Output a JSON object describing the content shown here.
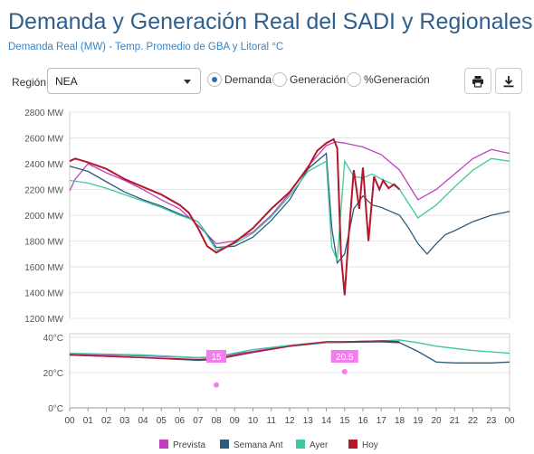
{
  "header": {
    "title": "Demanda y Generación Real del SADI y Regionales",
    "subtitle": "Demanda Real (MW) - Temp. Promedio de GBA y Litoral °C"
  },
  "controls": {
    "region_label": "Región",
    "region_value": "NEA",
    "radios": [
      {
        "label": "Demanda",
        "selected": true
      },
      {
        "label": "Generación",
        "selected": false
      },
      {
        "label": "%Generación",
        "selected": false
      }
    ],
    "print_icon": "printer-icon",
    "download_icon": "download-icon"
  },
  "colors": {
    "prevista": "#c13fbf",
    "semana_ant": "#2e5b7a",
    "ayer": "#3ec7a0",
    "hoy": "#b3182c",
    "marker": "#f37dec"
  },
  "chart_data": [
    {
      "type": "line",
      "title": "Demanda (MW)",
      "y_unit": "MW",
      "ylim": [
        1200,
        2800
      ],
      "y_ticks": [
        "1200 MW",
        "1400 MW",
        "1600 MW",
        "1800 MW",
        "2000 MW",
        "2200 MW",
        "2400 MW",
        "2600 MW",
        "2800 MW"
      ],
      "x_ticks": [
        "00",
        "01",
        "02",
        "03",
        "04",
        "05",
        "06",
        "07",
        "08",
        "09",
        "10",
        "11",
        "12",
        "13",
        "14",
        "15",
        "16",
        "17",
        "18",
        "19",
        "20",
        "21",
        "22",
        "23",
        "00"
      ],
      "x_unit": "hour",
      "xlim": [
        0,
        24
      ],
      "series": [
        {
          "name": "Prevista",
          "x": [
            0,
            0.3,
            1,
            2,
            3,
            4,
            5,
            6,
            7,
            8,
            9,
            10,
            11,
            12,
            13,
            14,
            14.5,
            15,
            16,
            17,
            18,
            19,
            20,
            21,
            22,
            23,
            24
          ],
          "y": [
            2190,
            2280,
            2400,
            2330,
            2270,
            2200,
            2120,
            2050,
            1920,
            1780,
            1800,
            1870,
            2000,
            2170,
            2380,
            2540,
            2570,
            2560,
            2530,
            2470,
            2350,
            2120,
            2200,
            2320,
            2440,
            2510,
            2480
          ]
        },
        {
          "name": "Semana Ant",
          "x": [
            0,
            1,
            2,
            3,
            4,
            5,
            6,
            7,
            8,
            9,
            10,
            11,
            12,
            13,
            14,
            14.3,
            14.6,
            15,
            15.5,
            16,
            16.5,
            17,
            17.5,
            18,
            18.5,
            19,
            19.5,
            20,
            20.5,
            21,
            22,
            23,
            24
          ],
          "y": [
            2380,
            2340,
            2260,
            2180,
            2120,
            2070,
            2010,
            1950,
            1750,
            1760,
            1830,
            1960,
            2120,
            2360,
            2480,
            1900,
            1630,
            1700,
            2050,
            2150,
            2080,
            2060,
            2030,
            2000,
            1900,
            1780,
            1700,
            1780,
            1850,
            1880,
            1950,
            2000,
            2030
          ]
        },
        {
          "name": "Ayer",
          "x": [
            0,
            1,
            2,
            3,
            4,
            5,
            6,
            7,
            8,
            9,
            10,
            11,
            12,
            13,
            14,
            14.3,
            14.6,
            15,
            15.5,
            16,
            16.5,
            17,
            17.5,
            18,
            19,
            20,
            21,
            22,
            23,
            24
          ],
          "y": [
            2270,
            2250,
            2210,
            2160,
            2110,
            2060,
            2000,
            1950,
            1730,
            1780,
            1860,
            1990,
            2150,
            2340,
            2420,
            1750,
            1650,
            2420,
            2300,
            2290,
            2320,
            2280,
            2250,
            2200,
            1980,
            2080,
            2220,
            2350,
            2440,
            2420
          ]
        },
        {
          "name": "Hoy",
          "x": [
            0,
            0.3,
            1,
            2,
            3,
            4,
            5,
            6,
            6.5,
            7,
            7.5,
            8,
            8.5,
            9,
            10,
            11,
            12,
            13,
            13.5,
            14,
            14.4,
            14.6,
            14.8,
            15,
            15.2,
            15.5,
            15.8,
            16,
            16.3,
            16.6,
            16.9,
            17.1,
            17.4,
            17.7,
            18
          ],
          "y": [
            2420,
            2440,
            2410,
            2360,
            2280,
            2220,
            2160,
            2080,
            2020,
            1900,
            1760,
            1710,
            1750,
            1790,
            1900,
            2050,
            2180,
            2370,
            2500,
            2560,
            2590,
            2520,
            1700,
            1380,
            1800,
            2350,
            2050,
            2370,
            1800,
            2300,
            2200,
            2270,
            2210,
            2240,
            2200
          ]
        }
      ]
    },
    {
      "type": "line",
      "title": "Temperatura (°C)",
      "y_unit": "°C",
      "ylim": [
        0,
        40
      ],
      "y_ticks": [
        "0°C",
        "20°C",
        "40°C"
      ],
      "x_ticks": [
        "00",
        "01",
        "02",
        "03",
        "04",
        "05",
        "06",
        "07",
        "08",
        "09",
        "10",
        "11",
        "12",
        "13",
        "14",
        "15",
        "16",
        "17",
        "18",
        "19",
        "20",
        "21",
        "22",
        "23",
        "00"
      ],
      "xlim": [
        0,
        24
      ],
      "series": [
        {
          "name": "Prevista",
          "x": [
            0,
            4,
            7,
            8,
            10,
            12,
            14,
            15,
            17,
            18
          ],
          "y": [
            30.5,
            29.5,
            28.5,
            29,
            32,
            35.5,
            37.5,
            37.5,
            38,
            37.5
          ]
        },
        {
          "name": "Semana Ant",
          "x": [
            0,
            4,
            7,
            8,
            10,
            12,
            14,
            17,
            18,
            19,
            20,
            21,
            22,
            23,
            24
          ],
          "y": [
            30,
            28.5,
            27,
            27.5,
            31.5,
            35,
            37,
            37.5,
            37,
            32,
            26,
            25.5,
            25.5,
            25.5,
            26
          ]
        },
        {
          "name": "Ayer",
          "x": [
            0,
            4,
            7,
            8,
            10,
            12,
            14,
            15,
            17,
            18,
            19,
            20,
            22,
            24
          ],
          "y": [
            31,
            30,
            28.5,
            29,
            33,
            35.5,
            37,
            37.5,
            38,
            38.5,
            37,
            35,
            32.5,
            31
          ]
        },
        {
          "name": "Hoy",
          "x": [
            0,
            4,
            7,
            8,
            10,
            12,
            14,
            15,
            17,
            18
          ],
          "y": [
            30,
            28.5,
            27.5,
            28,
            31.5,
            35,
            37.5,
            37.5,
            38,
            37.5
          ]
        }
      ],
      "annotations": [
        {
          "x": 8,
          "y": 15,
          "label": "15",
          "dot_y": 13
        },
        {
          "x": 15,
          "y": 20.5,
          "label": "20.5",
          "dot_y": 20.5
        }
      ]
    }
  ],
  "legend": [
    {
      "name": "Prevista"
    },
    {
      "name": "Semana Ant"
    },
    {
      "name": "Ayer"
    },
    {
      "name": "Hoy"
    }
  ]
}
